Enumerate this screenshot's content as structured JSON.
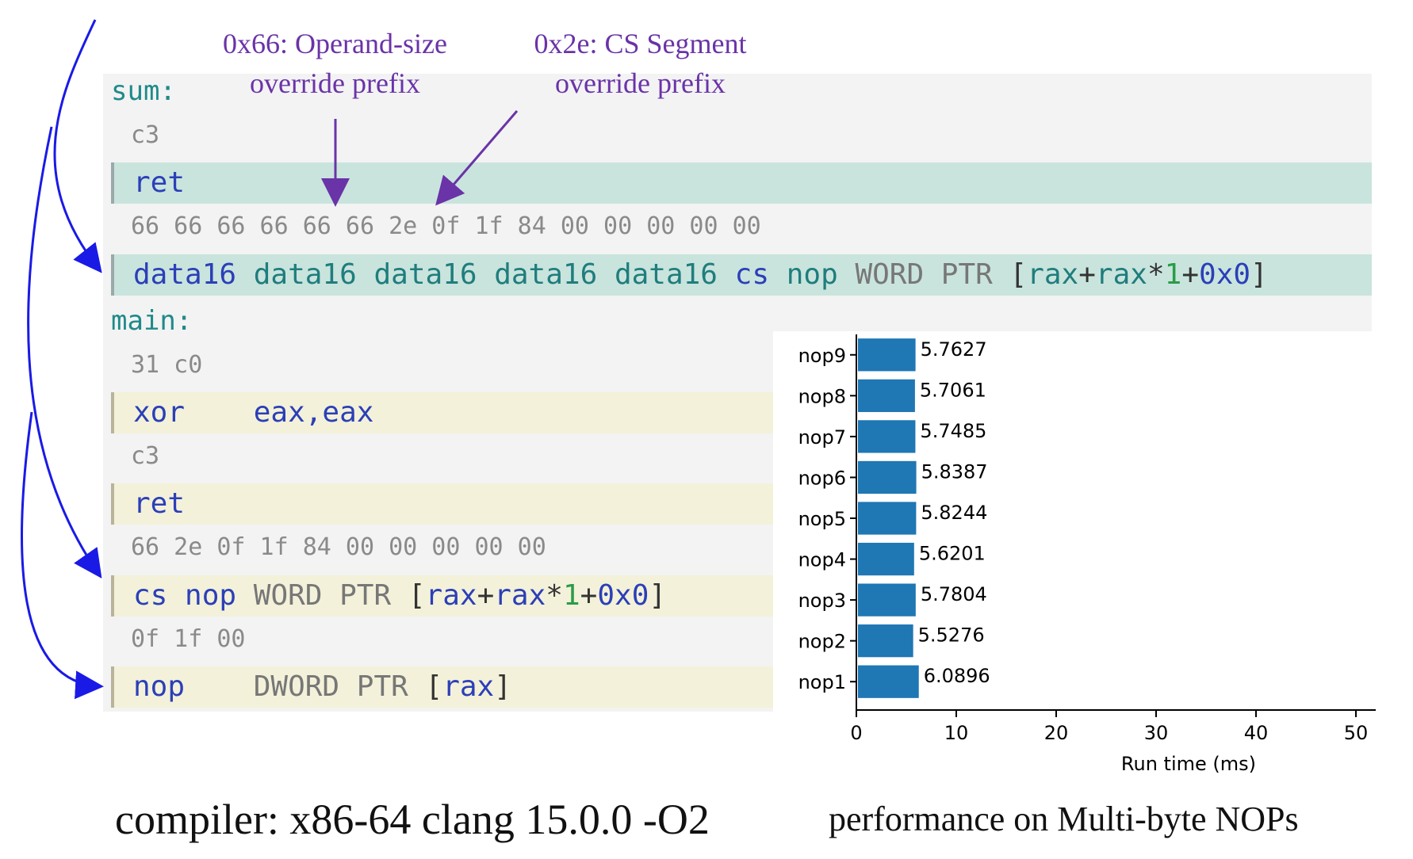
{
  "annotations": {
    "operand_prefix": [
      "0x66: Operand-size",
      "override prefix"
    ],
    "cs_prefix": [
      "0x2e: CS Segment",
      "override prefix"
    ]
  },
  "code": {
    "sum_label": "sum:",
    "sum_bytes_1": "c3",
    "sum_instr_1": "ret",
    "sum_bytes_2": "66 66 66 66 66 66 2e 0f 1f 84 00 00 00 00 00",
    "sum_instr_2": {
      "data16": [
        "data16",
        "data16",
        "data16",
        "data16",
        "data16"
      ],
      "cs": "cs",
      "op": "nop",
      "ptr": "WORD PTR",
      "lb": "[",
      "r1": "rax",
      "plus1": "+",
      "r2": "rax",
      "star": "*",
      "one": "1",
      "plus2": "+",
      "zero": "0x0",
      "rb": "]"
    },
    "main_label": "main:",
    "main_bytes_1": "31 c0",
    "main_instr_1": {
      "op": "xor",
      "args": "eax,eax"
    },
    "main_bytes_2": "c3",
    "main_instr_2": "ret",
    "main_bytes_3": "66 2e 0f 1f 84 00 00 00 00 00",
    "main_instr_3": {
      "cs": "cs",
      "op": "nop",
      "ptr": "WORD PTR",
      "lb": "[",
      "r1": "rax",
      "plus1": "+",
      "r2": "rax",
      "star": "*",
      "one": "1",
      "plus2": "+",
      "zero": "0x0",
      "rb": "]"
    },
    "main_bytes_4": "0f 1f 00",
    "main_instr_4": {
      "op": "nop",
      "ptr": "DWORD PTR",
      "lb": "[",
      "r": "rax",
      "rb": "]"
    }
  },
  "captions": {
    "compiler": "compiler: x86-64 clang 15.0.0 -O2",
    "performance": "performance on Multi-byte NOPs"
  },
  "colors": {
    "bar": "#1f77b4",
    "arrow_blue": "#1a1ae6",
    "arrow_purple": "#6a33a8"
  },
  "chart_data": {
    "type": "bar",
    "orientation": "horizontal",
    "categories": [
      "nop9",
      "nop8",
      "nop7",
      "nop6",
      "nop5",
      "nop4",
      "nop3",
      "nop2",
      "nop1"
    ],
    "values": [
      5.7627,
      5.7061,
      5.7485,
      5.8387,
      5.8244,
      5.6201,
      5.7804,
      5.5276,
      6.0896
    ],
    "value_labels": [
      "5.7627",
      "5.7061",
      "5.7485",
      "5.8387",
      "5.8244",
      "5.6201",
      "5.7804",
      "5.5276",
      "6.0896"
    ],
    "xlabel": "Run time (ms)",
    "xlim": [
      0,
      50
    ],
    "xticks": [
      0,
      10,
      20,
      30,
      40,
      50
    ],
    "xtick_labels": [
      "0",
      "10",
      "20",
      "30",
      "40",
      "50"
    ],
    "grid": false
  }
}
